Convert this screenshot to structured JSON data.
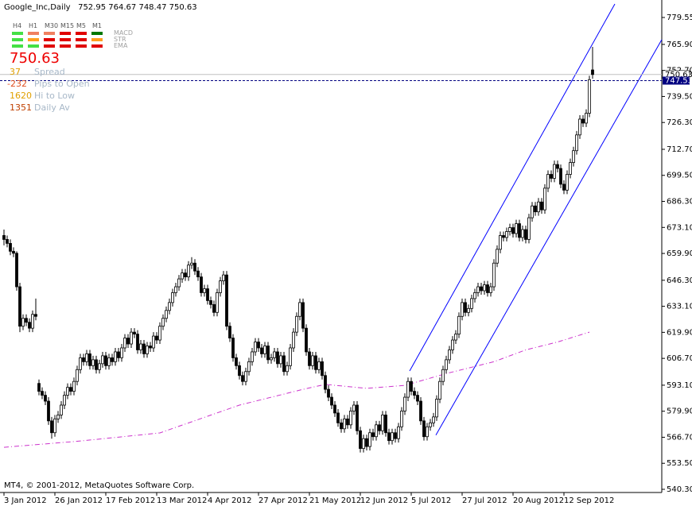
{
  "chart_data": {
    "type": "candlestick",
    "title": "Google_Inc,Daily",
    "footer": "MT4, © 2001-2012, MetaQuotes Software Corp.",
    "categories": [
      "3 Jan 2012",
      null,
      null,
      null,
      null,
      null,
      null,
      null,
      null,
      null,
      null,
      null,
      null,
      null,
      null,
      null,
      "26 Jan 2012",
      null,
      null,
      null,
      null,
      null,
      null,
      null,
      null,
      null,
      null,
      null,
      null,
      null,
      null,
      null,
      "17 Feb 2012",
      null,
      null,
      null,
      null,
      null,
      null,
      null,
      null,
      null,
      null,
      null,
      null,
      null,
      null,
      null,
      "13 Mar 2012",
      null,
      null,
      null,
      null,
      null,
      null,
      null,
      null,
      null,
      null,
      null,
      null,
      null,
      null,
      null,
      "4 Apr 2012",
      null,
      null,
      null,
      null,
      null,
      null,
      null,
      null,
      null,
      null,
      null,
      null,
      null,
      null,
      null,
      "27 Apr 2012",
      null,
      null,
      null,
      null,
      null,
      null,
      null,
      null,
      null,
      null,
      null,
      null,
      null,
      null,
      null,
      "21 May 2012",
      null,
      null,
      null,
      null,
      null,
      null,
      null,
      null,
      null,
      null,
      null,
      null,
      null,
      null,
      null,
      "12 Jun 2012",
      null,
      null,
      null,
      null,
      null,
      null,
      null,
      null,
      null,
      null,
      null,
      null,
      null,
      null,
      null,
      "5 Jul 2012",
      null,
      null,
      null,
      null,
      null,
      null,
      null,
      null,
      null,
      null,
      null,
      null,
      null,
      null,
      null,
      "27 Jul 2012",
      null,
      null,
      null,
      null,
      null,
      null,
      null,
      null,
      null,
      null,
      null,
      null,
      null,
      null,
      null,
      "20 Aug 2012",
      null,
      null,
      null,
      null,
      null,
      null,
      null,
      null,
      null,
      null,
      null,
      null,
      null,
      null,
      null,
      "12 Sep 2012",
      null,
      null,
      null,
      null,
      null,
      null,
      null,
      null,
      null
    ],
    "candles": [
      [
        669,
        672,
        664,
        667
      ],
      [
        667,
        669,
        663,
        665
      ],
      [
        665,
        667,
        659,
        661
      ],
      [
        661,
        663,
        658,
        660
      ],
      [
        660,
        661,
        641,
        643
      ],
      [
        643,
        645,
        620,
        623
      ],
      [
        623,
        629,
        621,
        627
      ],
      [
        627,
        629,
        623,
        625
      ],
      [
        625,
        627,
        620,
        622
      ],
      [
        622,
        631,
        620,
        629
      ],
      [
        629,
        637,
        626,
        628
      ],
      [
        594,
        596,
        588,
        590
      ],
      [
        590,
        592,
        586,
        588
      ],
      [
        588,
        590,
        583,
        585
      ],
      [
        585,
        587,
        573,
        575
      ],
      [
        575,
        577,
        566,
        569
      ],
      [
        569,
        578,
        567,
        576
      ],
      [
        576,
        580,
        574,
        578
      ],
      [
        578,
        585,
        576,
        583
      ],
      [
        583,
        590,
        581,
        588
      ],
      [
        588,
        594,
        586,
        592
      ],
      [
        592,
        594,
        588,
        590
      ],
      [
        590,
        597,
        588,
        595
      ],
      [
        595,
        603,
        593,
        601
      ],
      [
        601,
        609,
        599,
        607
      ],
      [
        607,
        609,
        603,
        605
      ],
      [
        605,
        611,
        603,
        609
      ],
      [
        609,
        611,
        601,
        603
      ],
      [
        603,
        608,
        601,
        606
      ],
      [
        606,
        608,
        599,
        601
      ],
      [
        601,
        606,
        599,
        604
      ],
      [
        604,
        610,
        602,
        608
      ],
      [
        608,
        610,
        601,
        603
      ],
      [
        603,
        609,
        601,
        607
      ],
      [
        607,
        609,
        603,
        605
      ],
      [
        605,
        612,
        603,
        610
      ],
      [
        610,
        612,
        605,
        607
      ],
      [
        607,
        614,
        605,
        612
      ],
      [
        612,
        619,
        610,
        617
      ],
      [
        617,
        619,
        612,
        614
      ],
      [
        614,
        622,
        612,
        620
      ],
      [
        620,
        622,
        617,
        619
      ],
      [
        619,
        621,
        609,
        611
      ],
      [
        611,
        616,
        609,
        614
      ],
      [
        614,
        616,
        607,
        609
      ],
      [
        609,
        615,
        607,
        613
      ],
      [
        613,
        615,
        610,
        612
      ],
      [
        612,
        620,
        610,
        618
      ],
      [
        618,
        620,
        614,
        616
      ],
      [
        616,
        625,
        614,
        623
      ],
      [
        623,
        629,
        621,
        627
      ],
      [
        627,
        633,
        625,
        631
      ],
      [
        631,
        637,
        629,
        635
      ],
      [
        635,
        642,
        633,
        640
      ],
      [
        640,
        645,
        638,
        643
      ],
      [
        643,
        649,
        641,
        647
      ],
      [
        647,
        652,
        645,
        650
      ],
      [
        650,
        652,
        646,
        648
      ],
      [
        648,
        656,
        646,
        654
      ],
      [
        654,
        658,
        652,
        655
      ],
      [
        655,
        657,
        649,
        651
      ],
      [
        651,
        653,
        646,
        648
      ],
      [
        648,
        650,
        638,
        640
      ],
      [
        640,
        644,
        638,
        642
      ],
      [
        642,
        644,
        634,
        636
      ],
      [
        636,
        638,
        632,
        634
      ],
      [
        634,
        636,
        628,
        630
      ],
      [
        630,
        642,
        628,
        640
      ],
      [
        640,
        648,
        638,
        646
      ],
      [
        646,
        651,
        644,
        649
      ],
      [
        649,
        651,
        621,
        623
      ],
      [
        623,
        625,
        615,
        617
      ],
      [
        617,
        619,
        605,
        607
      ],
      [
        607,
        609,
        601,
        603
      ],
      [
        603,
        605,
        596,
        598
      ],
      [
        598,
        600,
        593,
        595
      ],
      [
        595,
        602,
        593,
        600
      ],
      [
        600,
        607,
        598,
        605
      ],
      [
        605,
        612,
        603,
        610
      ],
      [
        610,
        617,
        608,
        615
      ],
      [
        615,
        617,
        610,
        612
      ],
      [
        612,
        614,
        607,
        609
      ],
      [
        609,
        615,
        607,
        613
      ],
      [
        613,
        615,
        604,
        606
      ],
      [
        606,
        609,
        604,
        607
      ],
      [
        607,
        612,
        605,
        610
      ],
      [
        610,
        612,
        602,
        604
      ],
      [
        604,
        610,
        602,
        608
      ],
      [
        608,
        610,
        598,
        600
      ],
      [
        600,
        605,
        598,
        603
      ],
      [
        603,
        614,
        601,
        612
      ],
      [
        612,
        622,
        610,
        620
      ],
      [
        620,
        630,
        618,
        628
      ],
      [
        628,
        637,
        626,
        635
      ],
      [
        635,
        637,
        620,
        622
      ],
      [
        622,
        624,
        608,
        610
      ],
      [
        610,
        612,
        601,
        603
      ],
      [
        603,
        610,
        601,
        608
      ],
      [
        608,
        610,
        599,
        601
      ],
      [
        601,
        607,
        599,
        605
      ],
      [
        605,
        607,
        596,
        598
      ],
      [
        598,
        600,
        589,
        591
      ],
      [
        591,
        593,
        585,
        587
      ],
      [
        587,
        589,
        581,
        583
      ],
      [
        583,
        585,
        577,
        579
      ],
      [
        579,
        581,
        572,
        574
      ],
      [
        574,
        576,
        569,
        571
      ],
      [
        571,
        578,
        569,
        576
      ],
      [
        576,
        578,
        571,
        573
      ],
      [
        573,
        582,
        571,
        580
      ],
      [
        580,
        585,
        578,
        583
      ],
      [
        583,
        585,
        568,
        570
      ],
      [
        570,
        572,
        559,
        561
      ],
      [
        561,
        568,
        559,
        566
      ],
      [
        566,
        568,
        560,
        562
      ],
      [
        562,
        571,
        560,
        569
      ],
      [
        569,
        571,
        565,
        567
      ],
      [
        567,
        575,
        565,
        573
      ],
      [
        573,
        575,
        568,
        570
      ],
      [
        570,
        580,
        568,
        578
      ],
      [
        578,
        580,
        567,
        569
      ],
      [
        569,
        571,
        563,
        565
      ],
      [
        565,
        571,
        563,
        569
      ],
      [
        569,
        571,
        564,
        566
      ],
      [
        566,
        574,
        564,
        572
      ],
      [
        572,
        582,
        570,
        580
      ],
      [
        580,
        589,
        578,
        587
      ],
      [
        587,
        597,
        585,
        595
      ],
      [
        595,
        597,
        588,
        590
      ],
      [
        590,
        592,
        586,
        588
      ],
      [
        588,
        590,
        583,
        585
      ],
      [
        585,
        587,
        573,
        575
      ],
      [
        575,
        577,
        565,
        567
      ],
      [
        567,
        574,
        565,
        572
      ],
      [
        572,
        576,
        570,
        574
      ],
      [
        574,
        579,
        572,
        577
      ],
      [
        577,
        588,
        575,
        586
      ],
      [
        586,
        597,
        584,
        595
      ],
      [
        595,
        603,
        593,
        601
      ],
      [
        601,
        608,
        599,
        606
      ],
      [
        606,
        613,
        604,
        611
      ],
      [
        611,
        618,
        609,
        616
      ],
      [
        616,
        621,
        614,
        619
      ],
      [
        619,
        630,
        617,
        628
      ],
      [
        628,
        637,
        626,
        635
      ],
      [
        635,
        637,
        628,
        630
      ],
      [
        630,
        634,
        628,
        632
      ],
      [
        632,
        639,
        630,
        637
      ],
      [
        637,
        642,
        635,
        640
      ],
      [
        640,
        645,
        638,
        643
      ],
      [
        643,
        645,
        639,
        641
      ],
      [
        641,
        646,
        639,
        644
      ],
      [
        644,
        646,
        638,
        640
      ],
      [
        640,
        645,
        638,
        643
      ],
      [
        643,
        657,
        641,
        655
      ],
      [
        655,
        664,
        653,
        662
      ],
      [
        662,
        671,
        660,
        669
      ],
      [
        669,
        671,
        666,
        668
      ],
      [
        668,
        673,
        666,
        671
      ],
      [
        671,
        675,
        669,
        673
      ],
      [
        673,
        675,
        668,
        670
      ],
      [
        670,
        677,
        668,
        675
      ],
      [
        675,
        677,
        666,
        668
      ],
      [
        668,
        674,
        666,
        672
      ],
      [
        672,
        674,
        665,
        667
      ],
      [
        667,
        680,
        665,
        678
      ],
      [
        678,
        686,
        676,
        684
      ],
      [
        684,
        686,
        679,
        681
      ],
      [
        681,
        688,
        679,
        686
      ],
      [
        686,
        688,
        680,
        682
      ],
      [
        682,
        695,
        680,
        693
      ],
      [
        693,
        702,
        691,
        700
      ],
      [
        700,
        702,
        696,
        698
      ],
      [
        698,
        707,
        696,
        705
      ],
      [
        705,
        707,
        701,
        703
      ],
      [
        703,
        705,
        693,
        695
      ],
      [
        695,
        697,
        690,
        692
      ],
      [
        692,
        702,
        690,
        700
      ],
      [
        700,
        708,
        698,
        706
      ],
      [
        706,
        714,
        704,
        712
      ],
      [
        712,
        722,
        710,
        720
      ],
      [
        720,
        730,
        718,
        728
      ],
      [
        728,
        730,
        724,
        726
      ],
      [
        726,
        733,
        724,
        731
      ],
      [
        731,
        750,
        729,
        748
      ],
      [
        752.95,
        764.67,
        748.47,
        750.63
      ]
    ],
    "moving_average": {
      "color": "#cc33cc",
      "x": [
        0,
        24,
        49,
        74,
        94,
        101,
        114,
        126,
        139,
        154,
        164,
        174,
        184
      ],
      "values": [
        561.6,
        564.8,
        568.9,
        583,
        591,
        593.5,
        591.5,
        593,
        599,
        605,
        611,
        615,
        620
      ]
    },
    "channel": [
      {
        "color": "#0000ff",
        "x": [
          127.5,
          192
        ],
        "values": [
          600.3,
          786.4
        ]
      },
      {
        "color": "#0000ff",
        "x": [
          135.75,
          206.75
        ],
        "values": [
          567.8,
          768.3
        ]
      }
    ],
    "ask": 747.53,
    "xlim": [
      -1.25,
      206.75
    ],
    "ylim": [
      538.69,
      788.41
    ],
    "yticks": [
      779.55,
      {
        "value": 765.9,
        "label": "765.90"
      },
      {
        "value": 752.7,
        "label": "752.70"
      },
      {
        "value": 739.5,
        "label": "739.50"
      },
      {
        "value": 726.3,
        "label": "726.30"
      },
      {
        "value": 712.7,
        "label": "712.70"
      },
      {
        "value": 699.5,
        "label": "699.50"
      },
      {
        "value": 686.3,
        "label": "686.30"
      },
      {
        "value": 673.1,
        "label": "673.10"
      },
      {
        "value": 659.9,
        "label": "659.90"
      },
      {
        "value": 646.3,
        "label": "646.30"
      },
      {
        "value": 633.1,
        "label": "633.10"
      },
      {
        "value": 619.9,
        "label": "619.90"
      },
      {
        "value": 606.7,
        "label": "606.70"
      },
      {
        "value": 593.1,
        "label": "593.10"
      },
      {
        "value": 579.9,
        "label": "579.90"
      },
      {
        "value": 566.7,
        "label": "566.70"
      },
      {
        "value": 553.5,
        "label": "553.50"
      },
      {
        "value": 540.3,
        "label": "540.30"
      }
    ],
    "grid": false,
    "panel": {
      "timeframes": [
        "H4",
        "H1",
        "M30",
        "M15",
        "M5",
        "M1"
      ],
      "indicators": [
        "MACD",
        "STR",
        "EMA"
      ],
      "signals": [
        [
          "#44e044",
          "#f08060",
          "#f08060",
          "#e00000",
          "#e00000",
          "#007800"
        ],
        [
          "#44e044",
          "#ffa020",
          "#e00000",
          "#e00000",
          "#e00000",
          "#ffa020"
        ],
        [
          "#44e044",
          "#44e044",
          "#e00000",
          "#e00000",
          "#e00000",
          "#e00000"
        ]
      ],
      "stats": [
        {
          "value": 37,
          "label": "Spread",
          "color": "#e0a000"
        },
        {
          "value": -232,
          "label": "Pips to Open",
          "color": "#e05020"
        },
        {
          "value": 1620,
          "label": "Hi to Low",
          "color": "#e0a000"
        },
        {
          "value": 1351,
          "label": "Daily Av",
          "color": "#c04000"
        }
      ]
    }
  }
}
